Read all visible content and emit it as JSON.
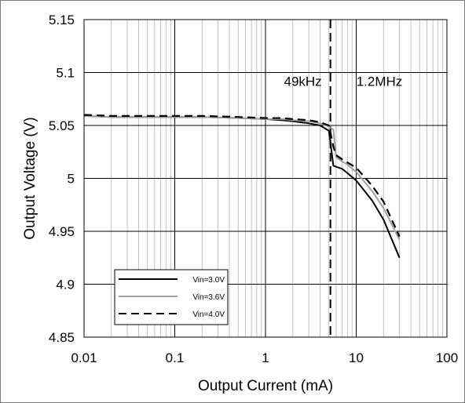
{
  "chart_data": {
    "type": "line",
    "title": "",
    "xlabel": "Output Current (mA)",
    "ylabel": "Output Voltage (V)",
    "x_scale": "log",
    "xlim": [
      0.01,
      100
    ],
    "ylim": [
      4.85,
      5.15
    ],
    "x_ticks": [
      0.01,
      0.1,
      1,
      10,
      100
    ],
    "x_tick_labels": [
      "0.01",
      "0.1",
      "1",
      "10",
      "100"
    ],
    "y_ticks": [
      4.85,
      4.9,
      4.95,
      5.0,
      5.05,
      5.1,
      5.15
    ],
    "y_tick_labels": [
      "4.85",
      "4.9",
      "4.95",
      "5",
      "5.05",
      "5.1",
      "5.15"
    ],
    "grid": true,
    "legend_position": "bottom-left",
    "annotations": {
      "boundary_x": 5.2,
      "left_label": "49kHz",
      "right_label": "1.2MHz"
    },
    "series": [
      {
        "name": "Vin=3.0V",
        "color": "#000000",
        "dash": "solid",
        "x": [
          0.01,
          0.02,
          0.05,
          0.1,
          0.2,
          0.5,
          1,
          1.5,
          2,
          3,
          4,
          5,
          5.6,
          6,
          7,
          8,
          10,
          15,
          20,
          30
        ],
        "y": [
          5.059,
          5.058,
          5.058,
          5.058,
          5.058,
          5.057,
          5.056,
          5.055,
          5.054,
          5.052,
          5.05,
          5.045,
          5.012,
          5.011,
          5.009,
          5.005,
          4.998,
          4.979,
          4.961,
          4.925
        ]
      },
      {
        "name": "Vin=3.6V",
        "color": "#a0a0a0",
        "dash": "solid",
        "x": [
          0.01,
          0.02,
          0.05,
          0.1,
          0.2,
          0.5,
          1,
          1.5,
          2,
          3,
          4,
          5,
          5.6,
          6,
          7,
          8,
          10,
          15,
          20,
          30
        ],
        "y": [
          5.059,
          5.058,
          5.058,
          5.058,
          5.058,
          5.057,
          5.056,
          5.056,
          5.055,
          5.054,
          5.052,
          5.049,
          5.046,
          5.02,
          5.016,
          5.013,
          5.006,
          4.988,
          4.972,
          4.942
        ]
      },
      {
        "name": "Vin=4.0V",
        "color": "#000000",
        "dash": "dashed",
        "x": [
          0.01,
          0.02,
          0.05,
          0.1,
          0.2,
          0.5,
          1,
          1.5,
          2,
          3,
          4,
          5,
          5.6,
          6,
          7,
          8,
          10,
          15,
          20,
          30
        ],
        "y": [
          5.06,
          5.059,
          5.059,
          5.059,
          5.059,
          5.058,
          5.057,
          5.057,
          5.056,
          5.055,
          5.053,
          5.05,
          5.03,
          5.022,
          5.018,
          5.015,
          5.01,
          4.993,
          4.978,
          4.945
        ]
      }
    ]
  }
}
